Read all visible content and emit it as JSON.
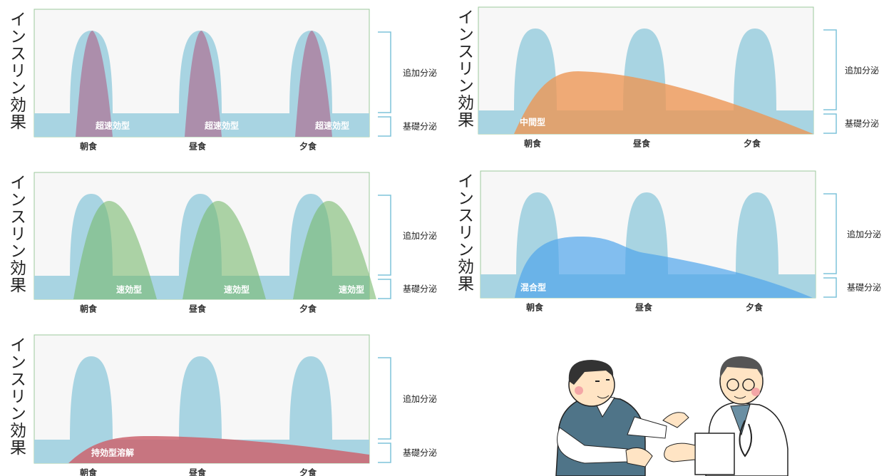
{
  "panels": [
    {
      "y_label": "インスリン効果",
      "meals": [
        "朝食",
        "昼食",
        "夕食"
      ],
      "bolus_label": "追加分泌",
      "basal_label": "基礎分泌",
      "insulin_label": "超速効型"
    },
    {
      "y_label": "インスリン効果",
      "meals": [
        "朝食",
        "昼食",
        "夕食"
      ],
      "bolus_label": "追加分泌",
      "basal_label": "基礎分泌",
      "insulin_label": "中間型"
    },
    {
      "y_label": "インスリン効果",
      "meals": [
        "朝食",
        "昼食",
        "夕食"
      ],
      "bolus_label": "追加分泌",
      "basal_label": "基礎分泌",
      "insulin_label": "速効型"
    },
    {
      "y_label": "インスリン効果",
      "meals": [
        "朝食",
        "昼食",
        "夕食"
      ],
      "bolus_label": "追加分泌",
      "basal_label": "基礎分泌",
      "insulin_label": "混合型"
    },
    {
      "y_label": "インスリン効果",
      "meals": [
        "朝食",
        "昼食",
        "夕食"
      ],
      "bolus_label": "追加分泌",
      "basal_label": "基礎分泌",
      "insulin_label": "持効型溶解"
    }
  ]
}
